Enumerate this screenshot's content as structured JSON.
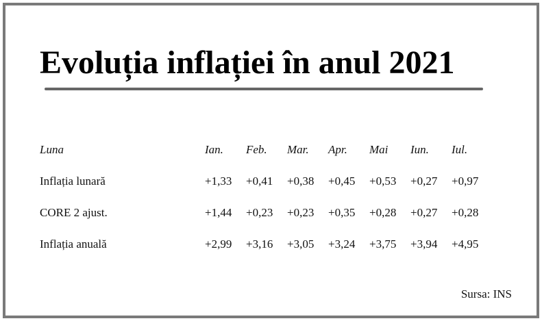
{
  "title": "Evoluția inflației în anul 2021",
  "table": {
    "header": {
      "label": "Luna",
      "months": [
        "Ian.",
        "Feb.",
        "Mar.",
        "Apr.",
        "Mai",
        "Iun.",
        "Iul."
      ]
    },
    "rows": [
      {
        "label": "Inflația lunară",
        "values": [
          "+1,33",
          "+0,41",
          "+0,38",
          "+0,45",
          "+0,53",
          "+0,27",
          "+0,97"
        ]
      },
      {
        "label": "CORE 2 ajust.",
        "values": [
          "+1,44",
          "+0,23",
          "+0,23",
          "+0,35",
          "+0,28",
          "+0,27",
          "+0,28"
        ]
      },
      {
        "label": "Inflația anuală",
        "values": [
          "+2,99",
          "+3,16",
          "+3,05",
          "+3,24",
          "+3,75",
          "+3,94",
          "+4,95"
        ]
      }
    ]
  },
  "source": "Sursa: INS",
  "colors": {
    "frame_border": "#7a7a7a",
    "title_rule": "#666666",
    "text": "#111111"
  }
}
